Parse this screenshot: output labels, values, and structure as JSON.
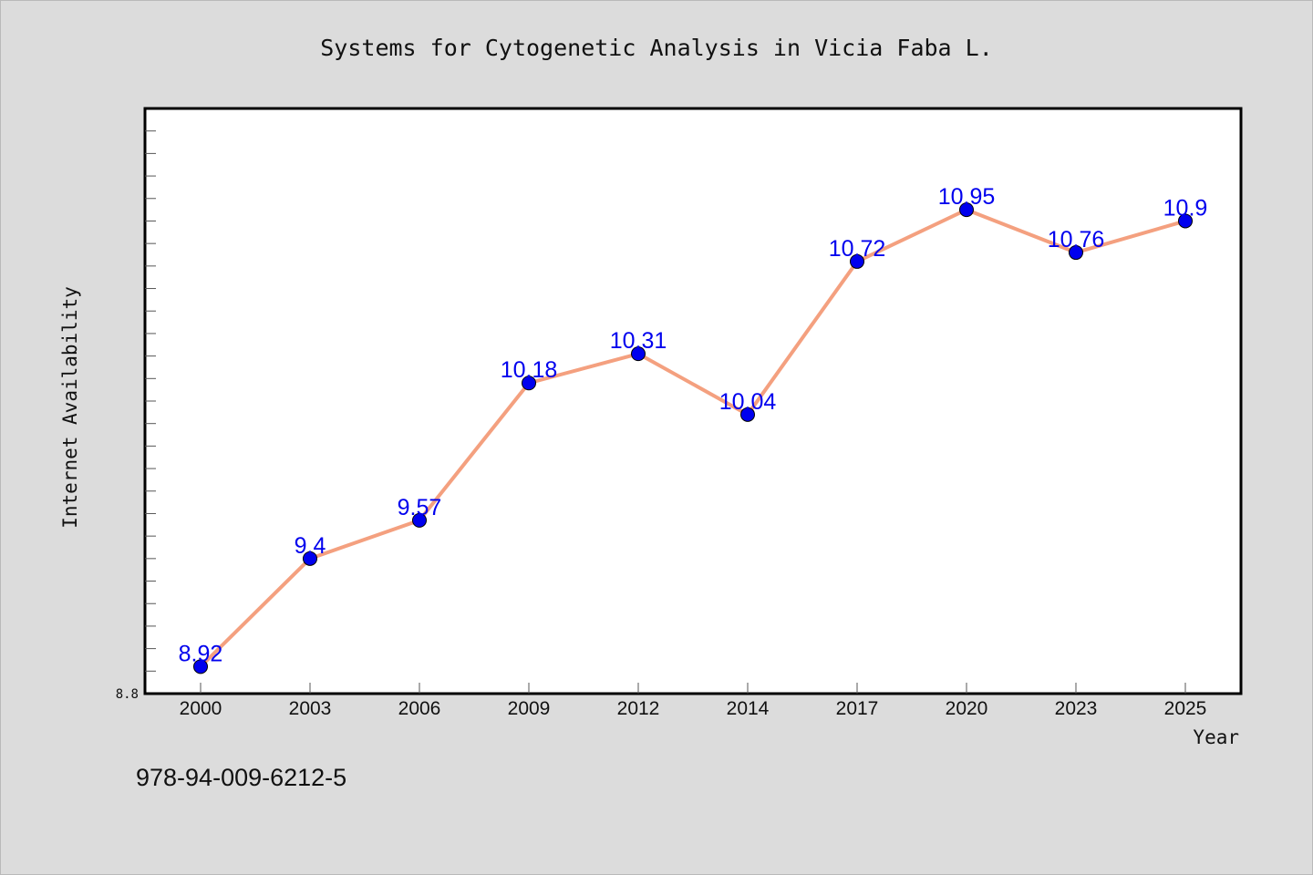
{
  "chart_data": {
    "type": "line",
    "title": "Systems for Cytogenetic Analysis in Vicia Faba L.",
    "xlabel": "Year",
    "ylabel": "Internet Availability",
    "categories": [
      "2000",
      "2003",
      "2006",
      "2009",
      "2012",
      "2014",
      "2017",
      "2020",
      "2023",
      "2025"
    ],
    "series": [
      {
        "values": [
          8.92,
          9.4,
          9.57,
          10.18,
          10.31,
          10.04,
          10.72,
          10.95,
          10.76,
          10.9
        ]
      }
    ],
    "value_labels": [
      "8.92",
      "9.4",
      "9.57",
      "10.18",
      "10.31",
      "10.04",
      "10.72",
      "10.95",
      "10.76",
      "10.9"
    ],
    "y_tick_labels": [
      "8.8"
    ],
    "ylim": [
      8.8,
      11.4
    ],
    "grid": false,
    "line_color": "#f4a07f",
    "marker_color": "#0000ee",
    "label_color": "#0000ee"
  },
  "footnote": "978-94-009-6212-5"
}
